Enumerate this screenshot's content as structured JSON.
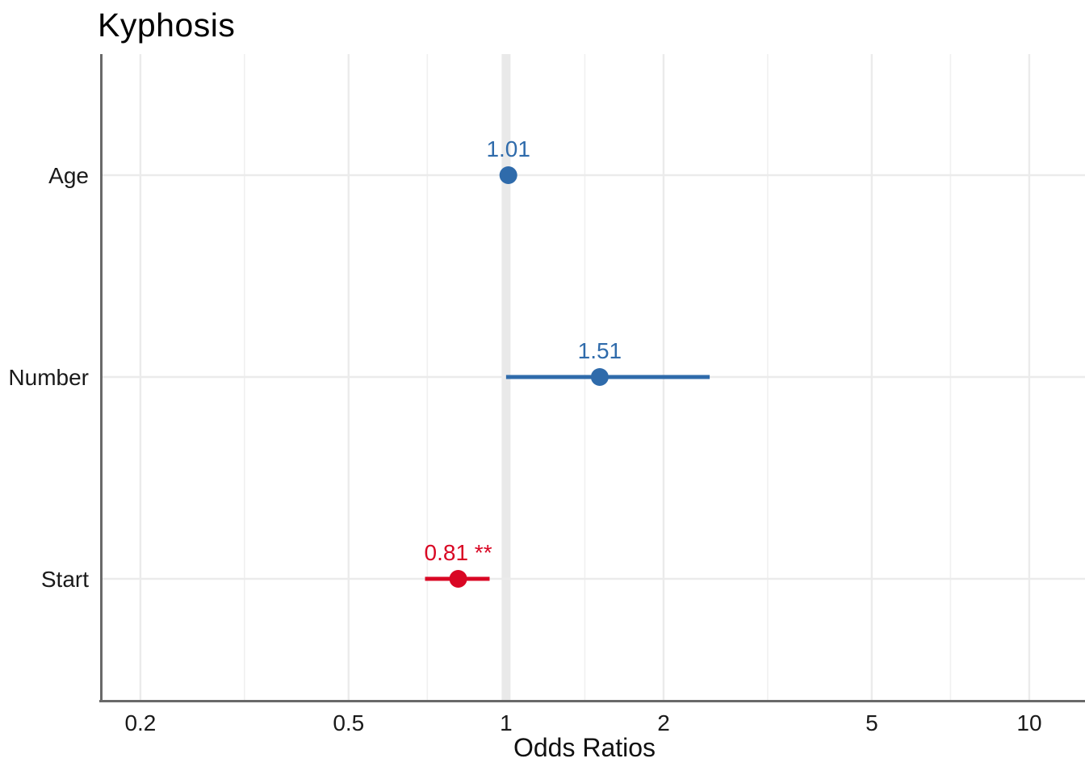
{
  "title": "Kyphosis",
  "colors": {
    "positive": "#2F6BAB",
    "negative": "#D90724",
    "grid_major": "#EBEBEB",
    "grid_minor": "#F0F0F0",
    "reference_band": "#E9E9E9",
    "axis_line": "#696969",
    "text": "#1A1A1A",
    "background": "#FFFFFF"
  },
  "chart_data": {
    "type": "scatter",
    "subtype": "forest-plot-dot-whisker",
    "title": "Kyphosis",
    "xlabel": "Odds Ratios",
    "ylabel": "",
    "x_scale": "log10",
    "x_range": [
      0.1675,
      12.78
    ],
    "x_major_ticks": [
      0.2,
      0.5,
      1,
      2,
      5,
      10
    ],
    "x_tick_labels": [
      "0.2",
      "0.5",
      "1",
      "2",
      "5",
      "10"
    ],
    "x_minor_ticks": [
      0.3162,
      0.7071,
      1.4142,
      3.1623,
      7.0711
    ],
    "reference_line": 1,
    "grid": "vertical major+minor gridlines; horizontal gridline per category; no legend",
    "legend": "none",
    "categories": [
      "Age",
      "Number",
      "Start"
    ],
    "row_fractions": [
      0.1875,
      0.5,
      0.8125
    ],
    "points": [
      {
        "category": "Age",
        "estimate": 1.01,
        "ci_low": 0.99,
        "ci_high": 1.03,
        "label": "1.01",
        "direction": "positive"
      },
      {
        "category": "Number",
        "estimate": 1.51,
        "ci_low": 1.0,
        "ci_high": 2.45,
        "label": "1.51",
        "direction": "positive"
      },
      {
        "category": "Start",
        "estimate": 0.81,
        "ci_low": 0.7,
        "ci_high": 0.93,
        "label": "0.81 **",
        "direction": "negative"
      }
    ]
  }
}
